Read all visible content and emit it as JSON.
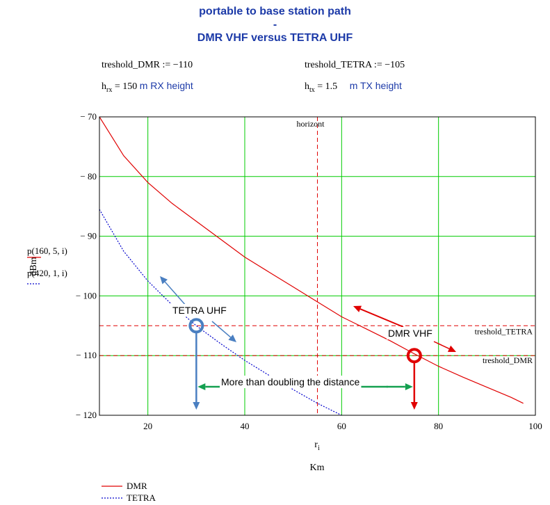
{
  "header": {
    "title_line1": "portable to base station path",
    "title_line2": "-",
    "title_line3": "DMR VHF versus TETRA UHF"
  },
  "params": {
    "threshold_dmr": "treshold_DMR := −110",
    "threshold_tetra": "treshold_TETRA := −105",
    "hrx_prefix": "h",
    "hrx_sub": "rx",
    "hrx_value": " = 150",
    "hrx_note": "m RX height",
    "htx_prefix": "h",
    "htx_sub": "tx",
    "htx_value": " = 1.5",
    "htx_note": "m TX height"
  },
  "chart_data": {
    "type": "line",
    "xlabel": "r",
    "xlabel_sub": "i",
    "xunit": "Km",
    "ylabel": "dBm",
    "xlim": [
      10,
      100
    ],
    "ylim": [
      -120,
      -70
    ],
    "xticks": [
      20,
      40,
      60,
      80,
      100
    ],
    "yticks": [
      -70,
      -80,
      -90,
      -100,
      -110,
      -120
    ],
    "grid": true,
    "grid_color": "#00cc00",
    "series": [
      {
        "name": "DMR",
        "expr": "p(160, 5, i)",
        "color": "#e00000",
        "style": "solid",
        "x": [
          10,
          15,
          20,
          25,
          30,
          35,
          40,
          45,
          50,
          55,
          60,
          65,
          70,
          75,
          80,
          85,
          90,
          95,
          97.5
        ],
        "y": [
          -70,
          -76.5,
          -81,
          -84.5,
          -87.5,
          -90.5,
          -93.5,
          -96,
          -98.5,
          -101,
          -103.5,
          -105.5,
          -107.5,
          -109.7,
          -111.8,
          -113.6,
          -115.3,
          -117,
          -118
        ]
      },
      {
        "name": "TETRA",
        "expr": "p(420, 1, i)",
        "color": "#0000cc",
        "style": "dotted",
        "x": [
          10,
          15,
          20,
          25,
          30,
          35,
          40,
          45,
          50,
          55,
          60
        ],
        "y": [
          -85.5,
          -92.5,
          -97.5,
          -101.5,
          -105,
          -108,
          -110.8,
          -113.3,
          -115.7,
          -118,
          -120
        ]
      }
    ],
    "reference_lines": [
      {
        "axis": "y",
        "value": -105,
        "label": "treshold_TETRA",
        "color": "#e00000"
      },
      {
        "axis": "y",
        "value": -110,
        "label": "treshold_DMR",
        "color": "#e00000"
      },
      {
        "axis": "x",
        "value": 55,
        "label": "horizont",
        "color": "#e00000"
      }
    ],
    "annotations": {
      "tetra_label": "TETRA  UHF",
      "dmr_label": "DMR VHF",
      "distance_label": "More than doubling the distance",
      "tetra_point": {
        "x": 30,
        "y": -105
      },
      "dmr_point": {
        "x": 75,
        "y": -110
      }
    },
    "legend": {
      "placement": "bottom-left",
      "entries": [
        "DMR",
        "TETRA"
      ]
    }
  }
}
